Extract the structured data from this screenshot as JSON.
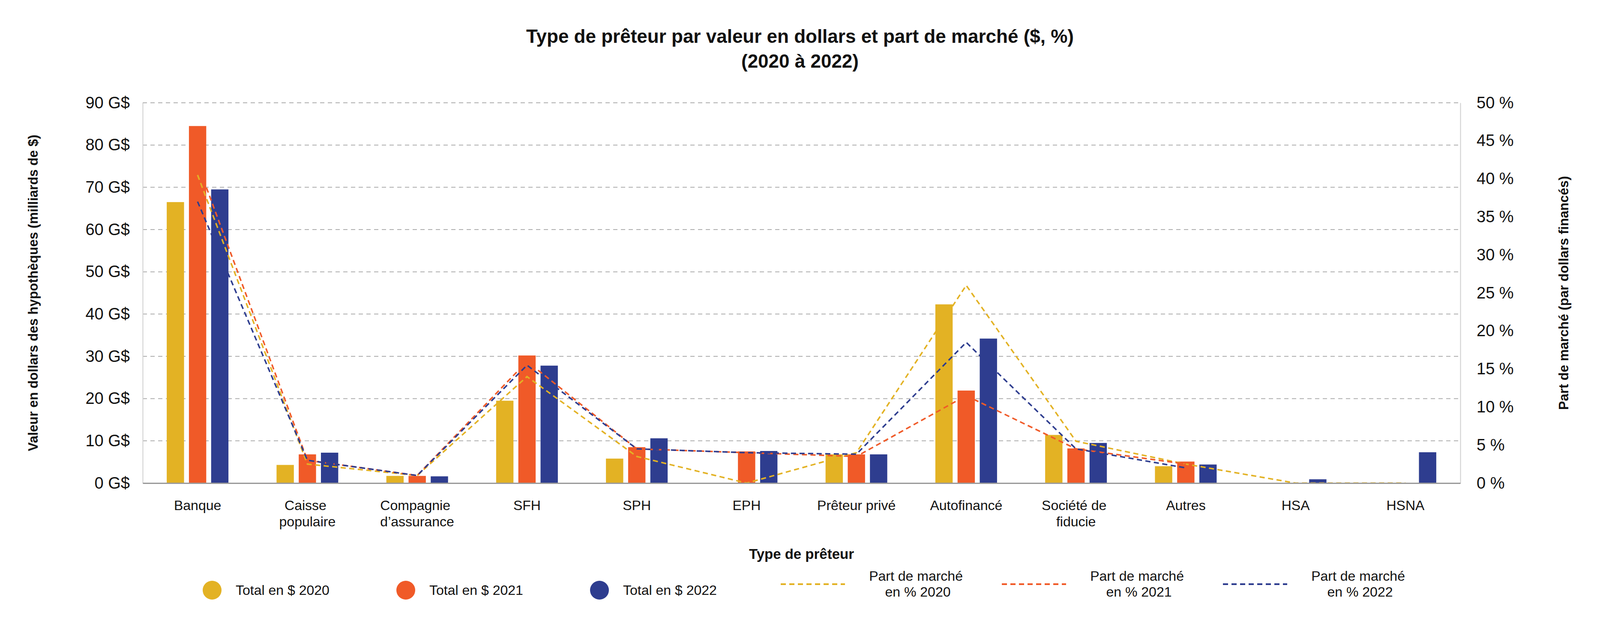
{
  "chart_data": {
    "type": "bar",
    "title": "Type de prêteur par valeur en dollars et part de marché ($, %)",
    "subtitle": "(2020 à 2022)",
    "x_label": "Type de prêteur",
    "y_label": "Valeur en dollars des hypothèques (milliards de $)",
    "y2_label": "Part de marché (par dollars financés)",
    "categories": [
      "Banque",
      "Caisse populaire",
      "Compagnie d’assurance",
      "SFH",
      "SPH",
      "EPH",
      "Prêteur privé",
      "Autofinancé",
      "Société de fiducie",
      "Autres",
      "HSA",
      "HSNA"
    ],
    "ylim": [
      0,
      90
    ],
    "yticks": [
      {
        "value": 0,
        "label": "0 G$"
      },
      {
        "value": 10,
        "label": "10 G$"
      },
      {
        "value": 20,
        "label": "20 G$"
      },
      {
        "value": 30,
        "label": "30 G$"
      },
      {
        "value": 40,
        "label": "40 G$"
      },
      {
        "value": 50,
        "label": "50 G$"
      },
      {
        "value": 60,
        "label": "60 G$"
      },
      {
        "value": 70,
        "label": "70 G$"
      },
      {
        "value": 80,
        "label": "80 G$"
      },
      {
        "value": 90,
        "label": "90 G$"
      }
    ],
    "y2lim": [
      0,
      50
    ],
    "y2ticks": [
      {
        "value": 0,
        "label": "0 %"
      },
      {
        "value": 5,
        "label": "5 %"
      },
      {
        "value": 10,
        "label": "10 %"
      },
      {
        "value": 15,
        "label": "15 %"
      },
      {
        "value": 20,
        "label": "20 %"
      },
      {
        "value": 25,
        "label": "25 %"
      },
      {
        "value": 30,
        "label": "30 %"
      },
      {
        "value": 35,
        "label": "35 %"
      },
      {
        "value": 40,
        "label": "40 %"
      },
      {
        "value": 45,
        "label": "45 %"
      },
      {
        "value": 50,
        "label": "50 %"
      }
    ],
    "grid": true,
    "legend": "bottom",
    "series": [
      {
        "name": "Total en $ 2020",
        "type": "bar",
        "color": "#e3b224",
        "values": [
          66.5,
          4.3,
          1.7,
          19.5,
          5.8,
          null,
          6.8,
          42.3,
          11.4,
          4.0,
          null,
          null
        ]
      },
      {
        "name": "Total en $ 2021",
        "type": "bar",
        "color": "#f05a28",
        "values": [
          84.5,
          6.8,
          1.7,
          30.2,
          8.5,
          7.5,
          6.8,
          21.9,
          8.2,
          5.1,
          null,
          null
        ]
      },
      {
        "name": "Total en $ 2022",
        "type": "bar",
        "color": "#2e3d8f",
        "values": [
          69.5,
          7.2,
          1.6,
          27.8,
          10.6,
          7.6,
          6.8,
          34.2,
          9.5,
          4.4,
          0.9,
          7.3
        ]
      },
      {
        "name": "Part de marché en % 2020",
        "type": "line",
        "axis": "y2",
        "line_style": "dashed",
        "color": "#e3b224",
        "values": [
          40.5,
          2.5,
          1.0,
          14.0,
          3.5,
          0,
          4.0,
          26.0,
          5.5,
          2.5,
          0,
          0
        ]
      },
      {
        "name": "Part de marché en % 2021",
        "type": "line",
        "axis": "y2",
        "line_style": "dashed",
        "color": "#f05a28",
        "values": [
          42.0,
          3.0,
          1.0,
          16.0,
          4.5,
          4.0,
          3.5,
          11.5,
          4.5,
          2.5,
          null,
          null
        ]
      },
      {
        "name": "Part de marché en % 2022",
        "type": "line",
        "axis": "y2",
        "line_style": "dashed",
        "color": "#2e3d8f",
        "values": [
          37.0,
          3.0,
          1.0,
          15.5,
          4.5,
          4.0,
          3.8,
          18.5,
          4.5,
          2.0,
          null,
          null
        ]
      }
    ]
  }
}
